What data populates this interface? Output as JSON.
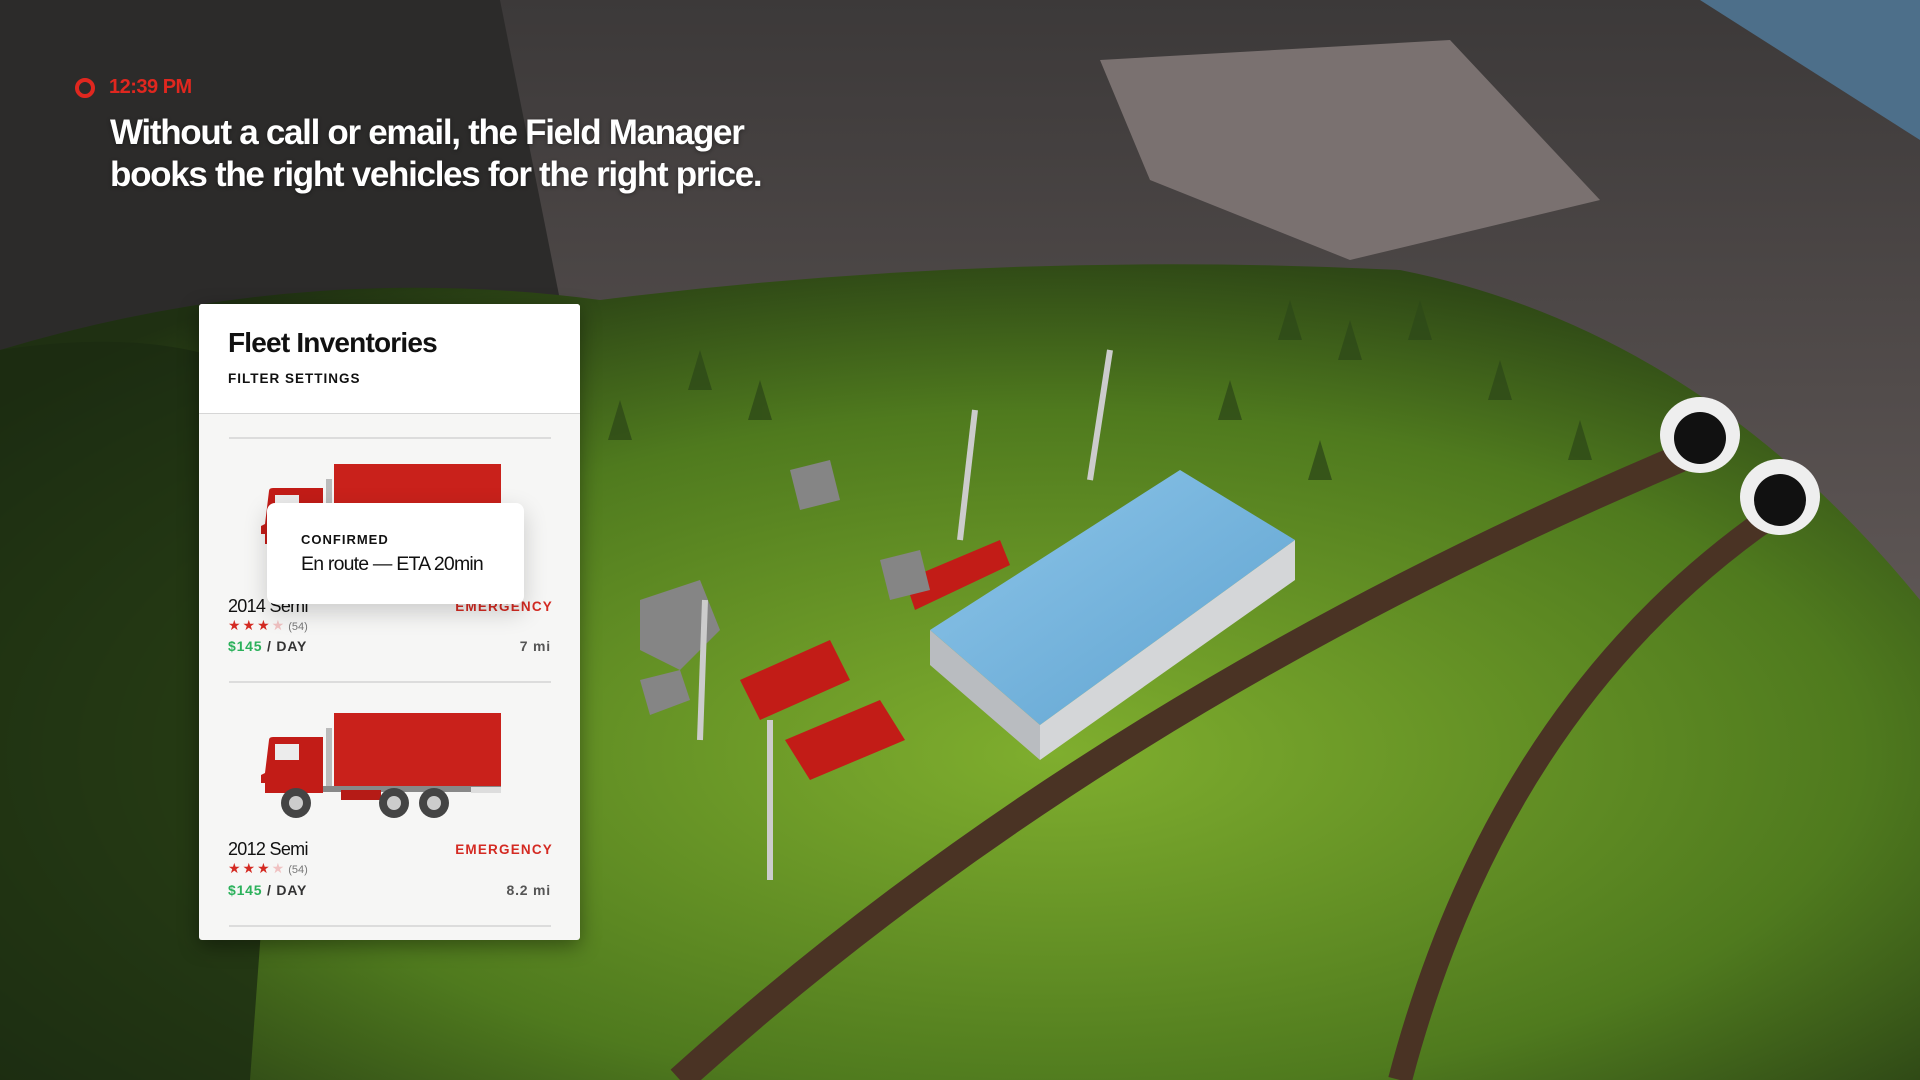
{
  "overlay": {
    "time": "12:39 PM",
    "headline_line1": "Without a call or email, the Field Manager",
    "headline_line2": "books the right vehicles for the right price."
  },
  "card": {
    "title": "Fleet Inventories",
    "filter_label": "FILTER SETTINGS",
    "items": [
      {
        "name": "2014 Semi",
        "tag": "EMERGENCY",
        "rating": 3,
        "rating_max": 4,
        "rating_count": "(54)",
        "price": "$145",
        "price_unit": " / DAY",
        "distance": "7 mi"
      },
      {
        "name": "2012 Semi",
        "tag": "EMERGENCY",
        "rating": 3,
        "rating_max": 4,
        "rating_count": "(54)",
        "price": "$145",
        "price_unit": " / DAY",
        "distance": "8.2 mi"
      }
    ],
    "tooltip": {
      "label": "CONFIRMED",
      "text": "En route — ETA 20min"
    }
  },
  "colors": {
    "accent_red": "#e0271f",
    "price_green": "#2bb15b",
    "truck_red": "#c9211b"
  },
  "icons": {
    "record": "record-dot-icon",
    "truck": "truck-icon",
    "star": "star-icon"
  }
}
